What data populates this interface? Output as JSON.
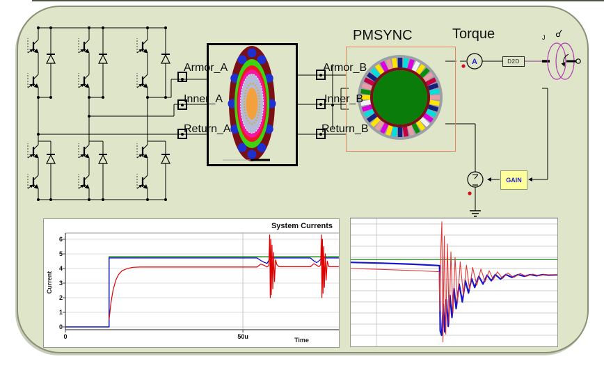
{
  "window": {
    "top_strip_color": "#4c5442"
  },
  "canvas": {
    "background": "#dfe5c9",
    "border": "#8a9076"
  },
  "labels": {
    "pmsync": "PMSYNC",
    "torque": "Torque",
    "ammeter": "A",
    "d2d": "D2D",
    "gain": "GAIN",
    "inertia": "J",
    "ports_a": [
      "Armor_A",
      "Inner_A",
      "Return_A"
    ],
    "ports_b": [
      "Armor_B",
      "Inner_B",
      "Return_B"
    ]
  },
  "colors": {
    "wire": "#000000",
    "mech_wire": "#8b2f8b",
    "mass_outline": "#b038b0",
    "monitor_dot": "#cf1020",
    "gain_fill": "#ffff9c",
    "gain_text": "#2222cc",
    "ammeter_text": "#2222cc",
    "orange_box_border": "#e2855a",
    "stator_gray": "#9aa0a6",
    "rotor_green": "#0a7c0a",
    "ring_darkred": "#7a1016",
    "stator_palette": [
      "#e89ca4",
      "#ffe400",
      "#14207e",
      "#00dede",
      "#dc00dc",
      "#f2f2f2",
      "#ffe400",
      "#0a8c0a",
      "#e89ca4",
      "#c40044",
      "#14207e",
      "#00dede",
      "#ffe400",
      "#dc00dc"
    ],
    "mandala": {
      "outer": "#7a1016",
      "petal": "#2030cf",
      "ring_green": "#3fd312",
      "ring_red": "#ef1726",
      "ring_magenta": "#f317a1",
      "ring_pale": "#b4bad8",
      "ring_gold": "#d4a92c",
      "core": "#f2a13d"
    }
  },
  "chart_data": [
    {
      "id": "system-currents",
      "type": "line",
      "title": "System Currents",
      "xlabel": "Time",
      "ylabel": "Current",
      "xlim": [
        0,
        77
      ],
      "ylim": [
        -0.2,
        6.4
      ],
      "grid": true,
      "legend_position": "none",
      "yticks": [
        0,
        1,
        2,
        3,
        4,
        5,
        6
      ],
      "xticks": [
        {
          "label": "0",
          "value": 0
        },
        {
          "label": "50u",
          "value": 50
        }
      ],
      "grid_x_values": [
        50
      ],
      "series": [
        {
          "name": "green-trace",
          "color": "#007a00",
          "width": 1.3,
          "points": [
            [
              0,
              0
            ],
            [
              12.3,
              0
            ],
            [
              12.3,
              4.8
            ],
            [
              77,
              4.8
            ]
          ]
        },
        {
          "name": "blue-trace",
          "color": "#0000c8",
          "width": 1.2,
          "points": [
            [
              0,
              0
            ],
            [
              12.3,
              0
            ],
            [
              12.3,
              4.72
            ],
            [
              54,
              4.72
            ],
            [
              55,
              4.55
            ],
            [
              56,
              4.42
            ],
            [
              56.8,
              4.35
            ],
            [
              57.4,
              4.6
            ],
            [
              57.9,
              4.72
            ],
            [
              69,
              4.72
            ],
            [
              70,
              4.52
            ],
            [
              70.8,
              4.4
            ],
            [
              71.6,
              4.56
            ],
            [
              72.3,
              4.72
            ],
            [
              77,
              4.72
            ]
          ]
        },
        {
          "name": "red-trace",
          "color": "#dc0000",
          "width": 1.2,
          "points": [
            [
              12.3,
              0.5
            ],
            [
              12.8,
              1.6
            ],
            [
              13.4,
              2.5
            ],
            [
              14.2,
              3.2
            ],
            [
              15,
              3.6
            ],
            [
              16,
              3.85
            ],
            [
              17.5,
              4.0
            ],
            [
              19,
              4.08
            ],
            [
              21,
              4.1
            ],
            [
              54,
              4.1
            ],
            [
              55,
              4.3
            ],
            [
              56,
              4.22
            ],
            [
              56.8,
              4.1
            ],
            [
              57.3,
              4.2
            ],
            [
              57.55,
              6.3
            ],
            [
              57.7,
              2.0
            ],
            [
              57.85,
              6.0
            ],
            [
              58,
              2.2
            ],
            [
              58.2,
              5.6
            ],
            [
              58.4,
              2.6
            ],
            [
              58.65,
              5.1
            ],
            [
              58.9,
              3.1
            ],
            [
              59.2,
              4.6
            ],
            [
              59.6,
              4.25
            ],
            [
              60.2,
              4.12
            ],
            [
              69,
              4.12
            ],
            [
              70,
              4.33
            ],
            [
              70.8,
              4.22
            ],
            [
              71.4,
              4.12
            ],
            [
              71.9,
              4.25
            ],
            [
              72.1,
              6.3
            ],
            [
              72.25,
              2.0
            ],
            [
              72.4,
              6.0
            ],
            [
              72.55,
              2.3
            ],
            [
              72.75,
              5.5
            ],
            [
              72.95,
              2.7
            ],
            [
              73.2,
              5.0
            ],
            [
              73.45,
              3.2
            ],
            [
              73.75,
              4.5
            ],
            [
              74.2,
              4.12
            ],
            [
              77,
              4.12
            ]
          ]
        }
      ]
    },
    {
      "id": "transient-zoom",
      "type": "line",
      "title": "",
      "xlabel": "",
      "ylabel": "",
      "xlim": [
        0,
        100
      ],
      "ylim": [
        -3,
        8.5
      ],
      "grid": true,
      "legend_position": "none",
      "grid_y_values": [
        -2,
        -1,
        0,
        1,
        2,
        3,
        4,
        5,
        6,
        7,
        8
      ],
      "grid_x_values": [
        12.5
      ],
      "series": [
        {
          "name": "green-trace",
          "color": "#2a8c2a",
          "width": 1.4,
          "points": [
            [
              0,
              4.8
            ],
            [
              100,
              4.8
            ]
          ]
        },
        {
          "name": "blue-trace",
          "color": "#1515cc",
          "width": 2.2,
          "points": [
            [
              0,
              4.55
            ],
            [
              15,
              4.48
            ],
            [
              30,
              4.38
            ],
            [
              42,
              4.27
            ],
            [
              43,
              4.25
            ],
            [
              43.3,
              -1.6
            ],
            [
              44,
              -2.0
            ],
            [
              44.8,
              0.8
            ],
            [
              45.5,
              -1.7
            ],
            [
              46.3,
              1.2
            ],
            [
              47.2,
              -1.2
            ],
            [
              48,
              1.6
            ],
            [
              49,
              -0.4
            ],
            [
              50,
              2.2
            ],
            [
              51,
              0.4
            ],
            [
              52.5,
              2.6
            ],
            [
              54,
              1.0
            ],
            [
              55.5,
              2.9
            ],
            [
              57,
              1.8
            ],
            [
              58.5,
              3.1
            ],
            [
              60,
              2.3
            ],
            [
              62,
              3.3
            ],
            [
              64,
              2.6
            ],
            [
              66,
              3.4
            ],
            [
              68,
              2.9
            ],
            [
              70,
              3.45
            ],
            [
              72.5,
              3.05
            ],
            [
              75,
              3.45
            ],
            [
              78,
              3.2
            ],
            [
              81,
              3.45
            ],
            [
              84,
              3.3
            ],
            [
              87,
              3.45
            ],
            [
              90,
              3.35
            ],
            [
              93,
              3.45
            ],
            [
              96,
              3.4
            ],
            [
              100,
              3.42
            ]
          ]
        },
        {
          "name": "red-trace",
          "color": "#e53535",
          "width": 1.1,
          "points": [
            [
              0,
              4.0
            ],
            [
              15,
              3.92
            ],
            [
              30,
              3.82
            ],
            [
              42,
              3.72
            ],
            [
              42.8,
              3.72
            ],
            [
              43.1,
              0.2
            ],
            [
              43.6,
              5.6
            ],
            [
              44.1,
              8.2
            ],
            [
              44.6,
              -2.6
            ],
            [
              45.3,
              6.9
            ],
            [
              46,
              -1.9
            ],
            [
              46.8,
              6.2
            ],
            [
              47.6,
              -0.9
            ],
            [
              48.5,
              5.5
            ],
            [
              49.5,
              0.0
            ],
            [
              50.5,
              5.0
            ],
            [
              51.7,
              0.9
            ],
            [
              53,
              4.6
            ],
            [
              54.5,
              1.6
            ],
            [
              56,
              4.3
            ],
            [
              57.5,
              2.1
            ],
            [
              59,
              4.1
            ],
            [
              61,
              2.5
            ],
            [
              63,
              3.95
            ],
            [
              65,
              2.8
            ],
            [
              67,
              3.8
            ],
            [
              69,
              3.0
            ],
            [
              71,
              3.7
            ],
            [
              73.5,
              3.1
            ],
            [
              76,
              3.6
            ],
            [
              79,
              3.2
            ],
            [
              82,
              3.55
            ],
            [
              85,
              3.3
            ],
            [
              88,
              3.5
            ],
            [
              91,
              3.35
            ],
            [
              94,
              3.45
            ],
            [
              97,
              3.4
            ],
            [
              100,
              3.42
            ]
          ]
        }
      ]
    }
  ]
}
